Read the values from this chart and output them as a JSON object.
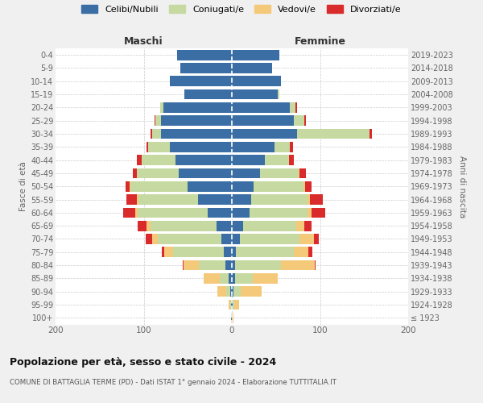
{
  "age_groups": [
    "100+",
    "95-99",
    "90-94",
    "85-89",
    "80-84",
    "75-79",
    "70-74",
    "65-69",
    "60-64",
    "55-59",
    "50-54",
    "45-49",
    "40-44",
    "35-39",
    "30-34",
    "25-29",
    "20-24",
    "15-19",
    "10-14",
    "5-9",
    "0-4"
  ],
  "birth_years": [
    "≤ 1923",
    "1924-1928",
    "1929-1933",
    "1934-1938",
    "1939-1943",
    "1944-1948",
    "1949-1953",
    "1954-1958",
    "1959-1963",
    "1964-1968",
    "1969-1973",
    "1974-1978",
    "1979-1983",
    "1984-1988",
    "1989-1993",
    "1994-1998",
    "1999-2003",
    "2004-2008",
    "2009-2013",
    "2014-2018",
    "2019-2023"
  ],
  "colors": {
    "celibe": "#3a6ea5",
    "coniugato": "#c5d9a0",
    "vedovo": "#f5c97a",
    "divorziato": "#d92b2b"
  },
  "maschi": {
    "celibe": [
      1,
      1,
      2,
      4,
      7,
      9,
      12,
      17,
      27,
      38,
      50,
      60,
      64,
      70,
      80,
      80,
      78,
      54,
      70,
      58,
      62
    ],
    "coniugato": [
      0,
      1,
      4,
      10,
      30,
      58,
      72,
      75,
      80,
      68,
      65,
      48,
      38,
      25,
      10,
      7,
      3,
      0,
      0,
      0,
      0
    ],
    "vedovo": [
      0,
      2,
      10,
      18,
      18,
      10,
      6,
      5,
      3,
      2,
      1,
      0,
      0,
      0,
      0,
      0,
      0,
      0,
      0,
      0,
      0
    ],
    "divorziato": [
      0,
      0,
      0,
      0,
      1,
      2,
      8,
      10,
      13,
      12,
      5,
      4,
      6,
      2,
      2,
      1,
      0,
      0,
      0,
      0,
      0
    ]
  },
  "femmine": {
    "celibe": [
      0,
      1,
      2,
      4,
      4,
      5,
      9,
      13,
      20,
      22,
      25,
      32,
      37,
      48,
      74,
      70,
      66,
      52,
      56,
      46,
      54
    ],
    "coniugato": [
      0,
      2,
      8,
      20,
      52,
      65,
      68,
      60,
      66,
      64,
      56,
      44,
      28,
      18,
      82,
      12,
      6,
      2,
      0,
      0,
      0
    ],
    "vedovo": [
      2,
      5,
      24,
      28,
      38,
      17,
      16,
      9,
      4,
      3,
      2,
      1,
      0,
      0,
      0,
      0,
      0,
      0,
      0,
      0,
      0
    ],
    "divorziato": [
      0,
      0,
      0,
      0,
      1,
      4,
      6,
      8,
      16,
      14,
      7,
      7,
      5,
      3,
      3,
      2,
      2,
      0,
      0,
      0,
      0
    ]
  },
  "xlim": 200,
  "title": "Popolazione per età, sesso e stato civile - 2024",
  "subtitle": "COMUNE DI BATTAGLIA TERME (PD) - Dati ISTAT 1° gennaio 2024 - Elaborazione TUTTITALIA.IT",
  "ylabel_left": "Fasce di età",
  "ylabel_right": "Anni di nascita",
  "xlabel_left": "Maschi",
  "xlabel_right": "Femmine",
  "background_color": "#f0f0f0",
  "plot_bg": "#ffffff"
}
